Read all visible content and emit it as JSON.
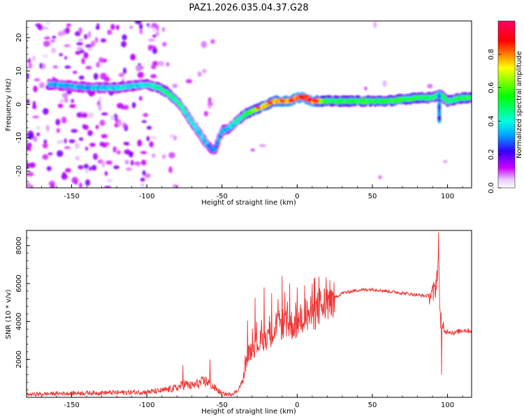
{
  "title": "PAZ1.2026.035.04.37.G28",
  "chart_data": [
    {
      "type": "heatmap",
      "title": "PAZ1.2026.035.04.37.G28",
      "xlabel": "Height of straight line (km)",
      "ylabel": "Frequency (Hz)",
      "xlim": [
        -180,
        116
      ],
      "ylim": [
        -25,
        25
      ],
      "x_ticks": [
        -150,
        -100,
        -50,
        0,
        50,
        100
      ],
      "y_ticks": [
        -20,
        -10,
        0,
        10,
        20
      ],
      "colorbar": {
        "label": "Normalized spectral amplitude",
        "range": [
          0,
          1
        ],
        "ticks": [
          "0.0",
          "0.2",
          "0.4",
          "0.6",
          "0.8"
        ],
        "colors": [
          "#ffffff",
          "#cc00ff",
          "#0000ff",
          "#00ffff",
          "#00ff00",
          "#ffff00",
          "#ff0000",
          "#ff0066"
        ]
      },
      "ridge": {
        "height_km": [
          -162,
          -140,
          -120,
          -100,
          -92,
          -85,
          -78,
          -72,
          -66,
          -60,
          -55,
          -50,
          -45,
          -40,
          -35,
          -30,
          -25,
          -20,
          -15,
          -10,
          -5,
          0,
          5,
          10,
          20,
          40,
          60,
          80,
          90,
          95,
          100,
          110,
          116
        ],
        "frequency_hz": [
          6,
          5,
          5,
          6,
          5,
          3,
          0,
          -4,
          -8,
          -12,
          -14,
          -8,
          -7,
          -5,
          -3,
          -2,
          -1,
          0,
          1,
          1,
          1,
          2,
          2,
          1,
          1,
          1,
          1,
          2,
          2,
          3,
          1,
          2,
          2
        ],
        "amplitude": [
          0.35,
          0.35,
          0.4,
          0.4,
          0.45,
          0.5,
          0.45,
          0.4,
          0.4,
          0.35,
          0.3,
          0.35,
          0.4,
          0.45,
          0.5,
          0.6,
          0.7,
          0.75,
          0.8,
          0.85,
          0.85,
          0.9,
          0.9,
          0.9,
          0.55,
          0.55,
          0.55,
          0.55,
          0.5,
          0.45,
          0.5,
          0.55,
          0.55
        ]
      }
    },
    {
      "type": "line",
      "xlabel": "Height of straight line (km)",
      "ylabel": "SNR (10 * v/v)",
      "xlim": [
        -180,
        116
      ],
      "ylim": [
        0,
        8800
      ],
      "x_ticks": [
        -150,
        -100,
        -50,
        0,
        50,
        100
      ],
      "y_ticks": [
        2000,
        4000,
        6000,
        8000
      ],
      "color": "#ee3333",
      "x": [
        -180,
        -160,
        -140,
        -120,
        -100,
        -90,
        -80,
        -75,
        -70,
        -65,
        -60,
        -55,
        -50,
        -45,
        -40,
        -36,
        -33,
        -30,
        -25,
        -20,
        -15,
        -10,
        -5,
        0,
        5,
        10,
        15,
        20,
        30,
        40,
        50,
        60,
        70,
        80,
        85,
        90,
        92,
        94,
        95,
        97,
        100,
        105,
        110,
        116
      ],
      "y": [
        150,
        200,
        230,
        250,
        280,
        350,
        500,
        700,
        600,
        750,
        850,
        500,
        200,
        150,
        300,
        900,
        2200,
        2600,
        2900,
        3200,
        3500,
        3900,
        3800,
        3900,
        4300,
        4400,
        4700,
        5000,
        5500,
        5650,
        5700,
        5600,
        5500,
        5400,
        5350,
        5400,
        5800,
        7200,
        4500,
        3400,
        3500,
        3400,
        3550,
        3500
      ],
      "spikes": {
        "x": [
          -76,
          -58,
          -33,
          -28,
          -22,
          -17,
          -10,
          -5,
          0,
          5,
          10,
          15,
          20,
          94,
          96
        ],
        "y": [
          1700,
          2000,
          4050,
          5250,
          5800,
          5500,
          6400,
          6000,
          5800,
          5900,
          6000,
          5750,
          5700,
          8700,
          1200
        ]
      }
    }
  ]
}
